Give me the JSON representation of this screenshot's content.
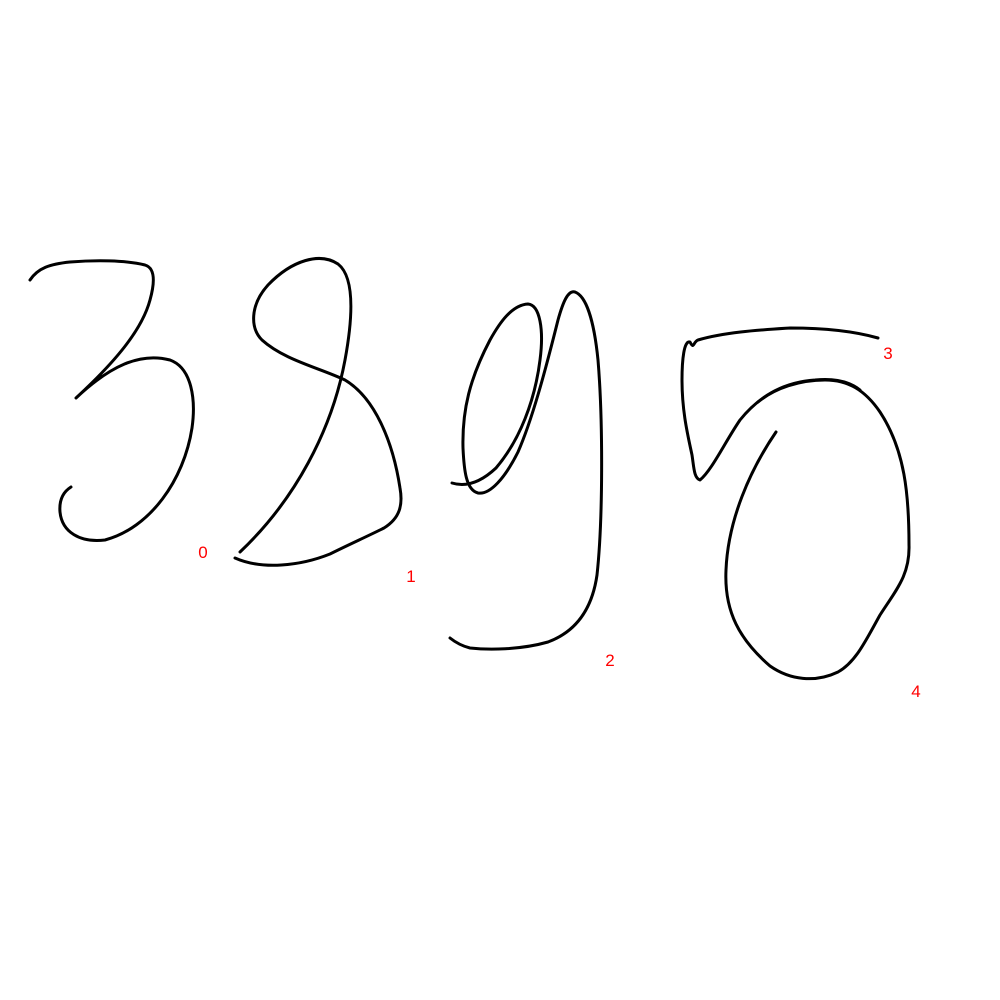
{
  "colors": {
    "background": "#ffffff",
    "ink": "#000000",
    "label": "#ff0000"
  },
  "stroke_indices": {
    "s0": "0",
    "s1": "1",
    "s2": "2",
    "s3": "3",
    "s4": "4"
  }
}
